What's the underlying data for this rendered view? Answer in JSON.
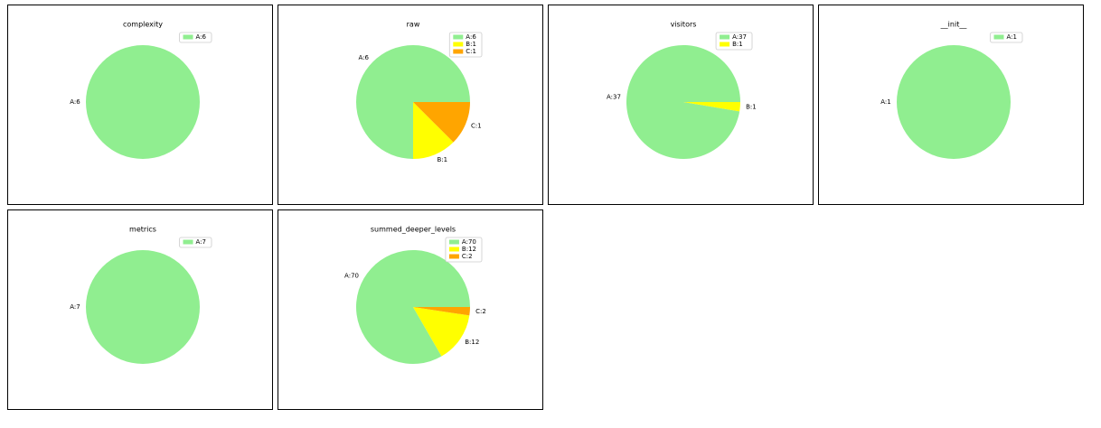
{
  "chart_data": [
    {
      "type": "pie",
      "title": "complexity",
      "categories": [
        "A:6"
      ],
      "values": [
        6
      ],
      "colors": [
        "#90ee90"
      ]
    },
    {
      "type": "pie",
      "title": "raw",
      "categories": [
        "A:6",
        "B:1",
        "C:1"
      ],
      "values": [
        6,
        1,
        1
      ],
      "colors": [
        "#90ee90",
        "#ffff00",
        "#ffa500"
      ]
    },
    {
      "type": "pie",
      "title": "visitors",
      "categories": [
        "A:37",
        "B:1"
      ],
      "values": [
        37,
        1
      ],
      "colors": [
        "#90ee90",
        "#ffff00"
      ]
    },
    {
      "type": "pie",
      "title": "__init__",
      "categories": [
        "A:1"
      ],
      "values": [
        1
      ],
      "colors": [
        "#90ee90"
      ]
    },
    {
      "type": "pie",
      "title": "metrics",
      "categories": [
        "A:7"
      ],
      "values": [
        7
      ],
      "colors": [
        "#90ee90"
      ]
    },
    {
      "type": "pie",
      "title": "summed_deeper_levels",
      "categories": [
        "A:70",
        "B:12",
        "C:2"
      ],
      "values": [
        70,
        12,
        2
      ],
      "colors": [
        "#90ee90",
        "#ffff00",
        "#ffa500"
      ]
    }
  ]
}
